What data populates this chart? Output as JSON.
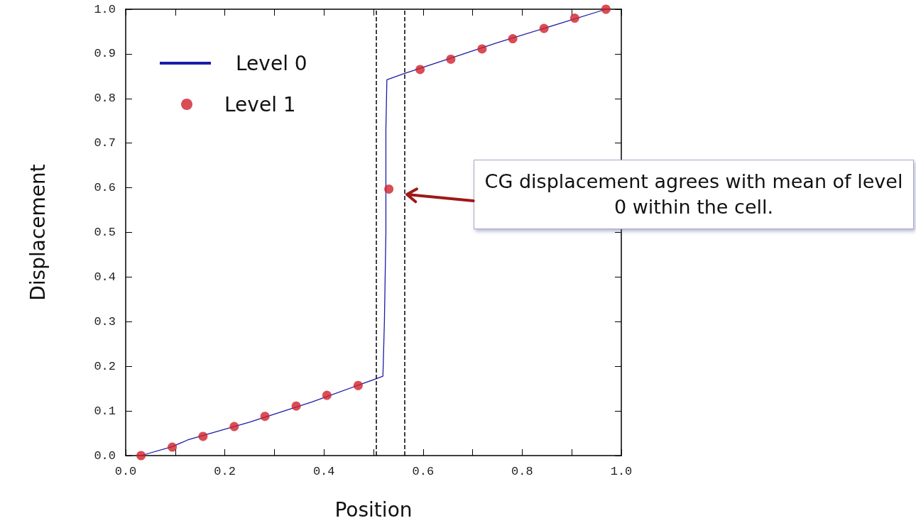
{
  "chart_data": {
    "type": "line",
    "xlabel": "Position",
    "ylabel": "Displacement",
    "xlim": [
      0,
      1
    ],
    "ylim": [
      0,
      1
    ],
    "xticks": [
      {
        "value": 0,
        "label": "0.0"
      },
      {
        "value": 0.1,
        "label": null
      },
      {
        "value": 0.2,
        "label": "0.2"
      },
      {
        "value": 0.3,
        "label": null
      },
      {
        "value": 0.4,
        "label": "0.4"
      },
      {
        "value": 0.5,
        "label": null
      },
      {
        "value": 0.6,
        "label": "0.6"
      },
      {
        "value": 0.7,
        "label": null
      },
      {
        "value": 0.8,
        "label": "0.8"
      },
      {
        "value": 0.9,
        "label": null
      },
      {
        "value": 1,
        "label": "1.0"
      }
    ],
    "yticks": [
      {
        "value": 0,
        "label": "0.0"
      },
      0.1,
      0.2,
      0.3,
      0.4,
      0.5,
      0.6,
      0.7,
      0.8,
      0.9,
      {
        "value": 1,
        "label": "1.0"
      }
    ],
    "grid": false,
    "legend": "top left",
    "series": [
      {
        "name": "Level 0",
        "type": "line",
        "color": "#1c1ca8",
        "line_style": "solid",
        "marker": "none",
        "x": [
          0.031,
          0.094,
          0.125,
          0.25,
          0.375,
          0.5,
          0.519,
          0.522,
          0.525,
          0.525,
          0.527,
          0.56,
          0.75,
          0.969
        ],
        "values": [
          0,
          0.02,
          0.035,
          0.075,
          0.12,
          0.17,
          0.178,
          0.3,
          0.5,
          0.73,
          0.842,
          0.855,
          0.925,
          1.0
        ]
      },
      {
        "name": "Level 1",
        "type": "scatter",
        "color": "#d0202a",
        "marker": "circle",
        "x": [
          0.031,
          0.094,
          0.156,
          0.219,
          0.281,
          0.344,
          0.406,
          0.469,
          0.531,
          0.594,
          0.656,
          0.719,
          0.781,
          0.844,
          0.906,
          0.969
        ],
        "values": [
          0.0,
          0.019,
          0.043,
          0.065,
          0.088,
          0.111,
          0.135,
          0.157,
          0.597,
          0.865,
          0.888,
          0.911,
          0.934,
          0.957,
          0.98,
          1.0
        ]
      }
    ],
    "ref_lines": [
      {
        "axis": "x",
        "value": 0.505,
        "color": "#000000",
        "line_style": "dashed"
      },
      {
        "axis": "x",
        "value": 0.562,
        "color": "#000000",
        "line_style": "dashed"
      }
    ],
    "annotations": [
      {
        "text": "CG displacement agrees with mean of level 0 within the cell.",
        "x": 0.562,
        "y": 0.585
      }
    ]
  }
}
